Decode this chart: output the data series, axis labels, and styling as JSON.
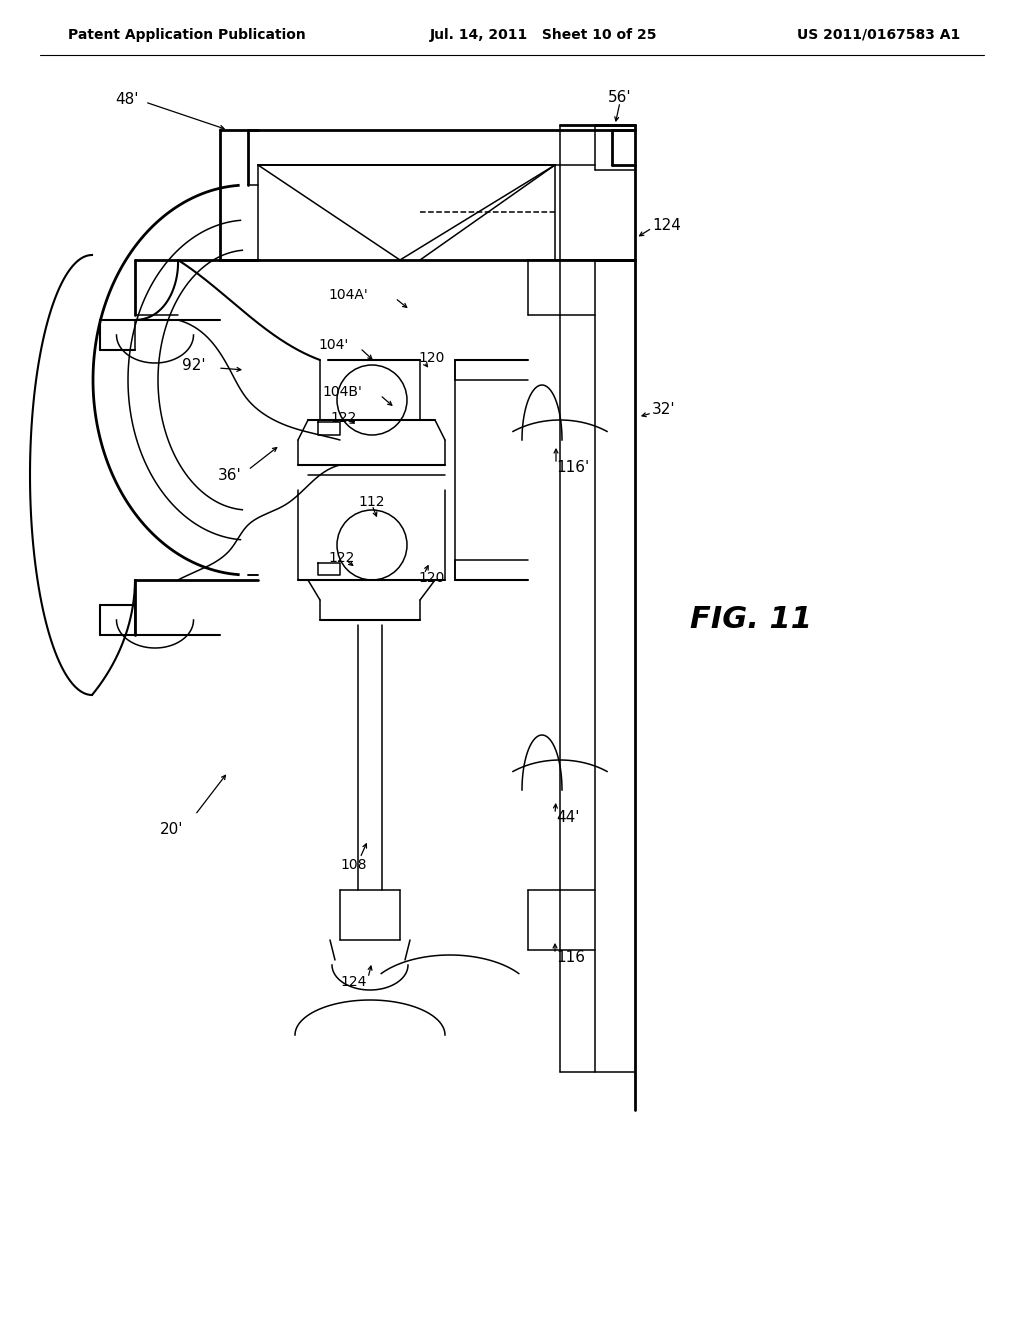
{
  "header_left": "Patent Application Publication",
  "header_middle": "Jul. 14, 2011   Sheet 10 of 25",
  "header_right": "US 2011/0167583 A1",
  "fig_label": "FIG. 11",
  "bg": "#ffffff"
}
